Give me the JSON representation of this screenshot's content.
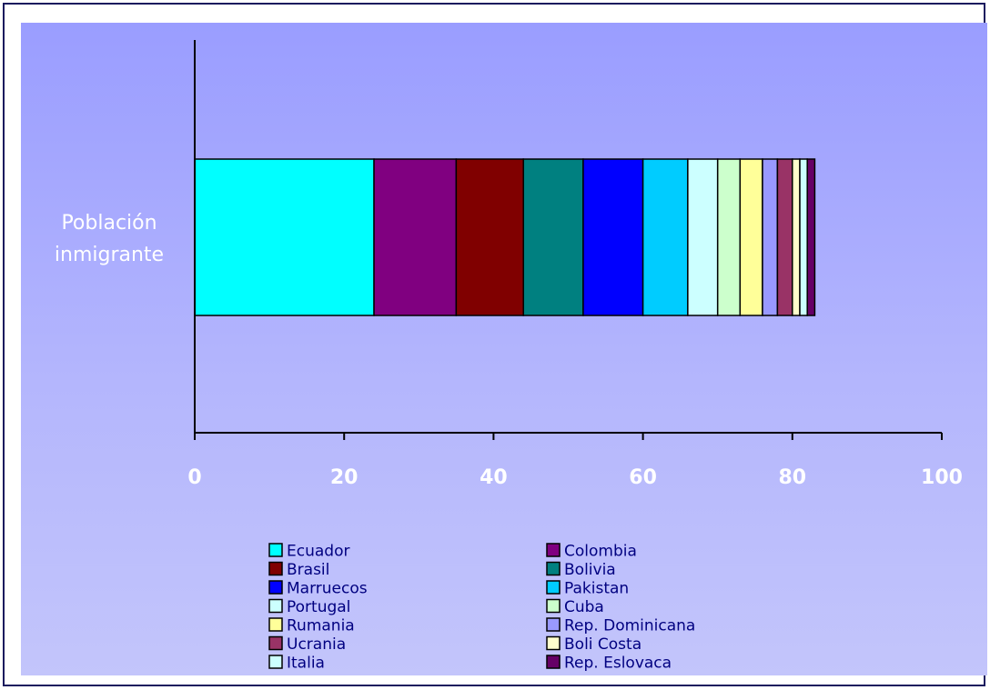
{
  "chart_data": {
    "type": "bar",
    "orientation": "horizontal",
    "stacked": true,
    "categories": [
      "Población inmigrante"
    ],
    "xlim": [
      0,
      100
    ],
    "xticks": [
      0,
      20,
      40,
      60,
      80,
      100
    ],
    "grid": false,
    "legend_position": "bottom",
    "series": [
      {
        "name": "Ecuador",
        "values": [
          24
        ],
        "color": "#00ffff"
      },
      {
        "name": "Colombia",
        "values": [
          11
        ],
        "color": "#800080"
      },
      {
        "name": "Brasil",
        "values": [
          9
        ],
        "color": "#800000"
      },
      {
        "name": "Bolivia",
        "values": [
          8
        ],
        "color": "#008080"
      },
      {
        "name": "Marruecos",
        "values": [
          8
        ],
        "color": "#0000ff"
      },
      {
        "name": "Pakistan",
        "values": [
          6
        ],
        "color": "#00ccff"
      },
      {
        "name": "Portugal",
        "values": [
          4
        ],
        "color": "#ccffff"
      },
      {
        "name": "Cuba",
        "values": [
          3
        ],
        "color": "#ccffcc"
      },
      {
        "name": "Rumania",
        "values": [
          3
        ],
        "color": "#ffff99"
      },
      {
        "name": "Rep. Dominicana",
        "values": [
          2
        ],
        "color": "#9999ff"
      },
      {
        "name": "Ucrania",
        "values": [
          2
        ],
        "color": "#993366"
      },
      {
        "name": "Boli Costa",
        "values": [
          1
        ],
        "color": "#ffffcc"
      },
      {
        "name": "Italia",
        "values": [
          1
        ],
        "color": "#ccffff"
      },
      {
        "name": "Rep. Eslovaca",
        "values": [
          1
        ],
        "color": "#660066"
      }
    ]
  }
}
